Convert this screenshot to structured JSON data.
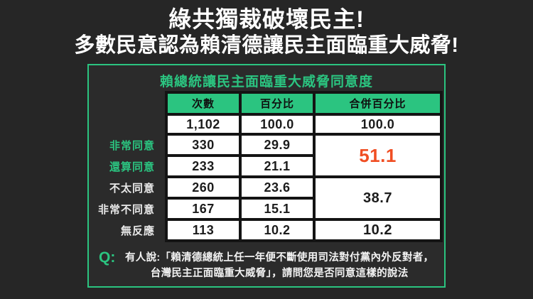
{
  "header": {
    "line1": "綠共獨裁破壞民主!",
    "line2": "多數民意認為賴清德讓民主面臨重大威脅!"
  },
  "note": {
    "q": "Q:",
    "line1": "有人說:「賴清德總統上任一年便不斷使用司法對付黨內外反對者，",
    "line2": "台灣民主正面臨重大威脅」，請問您是否同意這樣的說法"
  },
  "colors": {
    "accent_green": "#2bc480",
    "highlight_orange": "#f04e23",
    "panel_bg": "#2b2b2b",
    "outer_bg": "#262626"
  },
  "chart_data": {
    "type": "table",
    "title": "賴總統讓民主面臨重大威脅同意度",
    "columns": [
      "次數",
      "百分比",
      "合併百分比"
    ],
    "rows": [
      {
        "label": "",
        "count": "1,102",
        "percent": "100.0",
        "combined": "100.0"
      },
      {
        "label": "非常同意",
        "count": "330",
        "percent": "29.9",
        "combined": "51.1"
      },
      {
        "label": "還算同意",
        "count": "233",
        "percent": "21.1",
        "combined": ""
      },
      {
        "label": "不太同意",
        "count": "260",
        "percent": "23.6",
        "combined": "38.7"
      },
      {
        "label": "非常不同意",
        "count": "167",
        "percent": "15.1",
        "combined": ""
      },
      {
        "label": "無反應",
        "count": "113",
        "percent": "10.2",
        "combined": "10.2"
      }
    ],
    "merged_cells": [
      {
        "rows": [
          "非常同意",
          "還算同意"
        ],
        "value": "51.1",
        "color": "#f04e23"
      },
      {
        "rows": [
          "不太同意",
          "非常不同意"
        ],
        "value": "38.7",
        "color": "#1c1c1c"
      }
    ],
    "legend_position": "none",
    "grid": false
  }
}
